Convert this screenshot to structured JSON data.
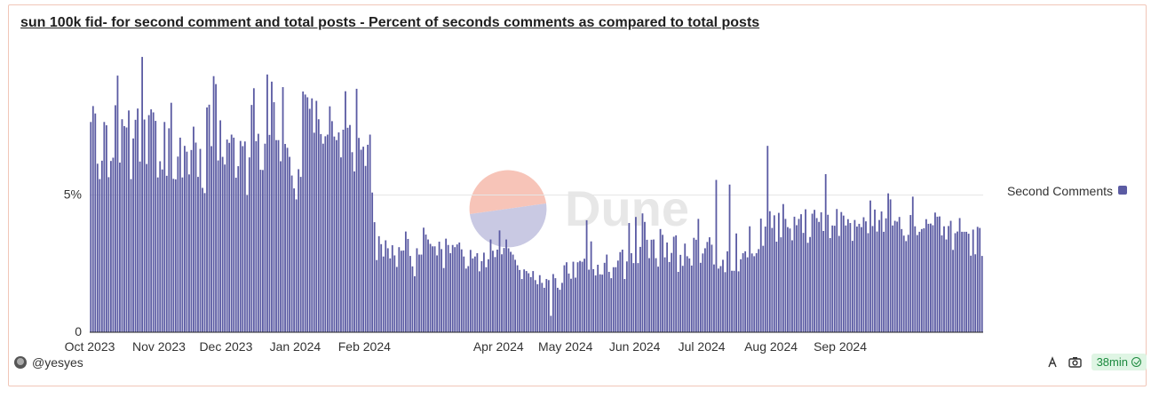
{
  "card": {
    "title": "sun 100k fid- for second comment and total posts - Percent of seconds comments as compared to total posts",
    "author": "@yesyes",
    "refresh_badge": "38min",
    "watermark_text": "Dune"
  },
  "colors": {
    "bar": "#5b5ba3",
    "grid": "#e6e6e6",
    "axis_text": "#333333",
    "watermark_coral": "#f7c4b8",
    "watermark_lavender": "#c9c9e3",
    "watermark_text": "#e7e7e7"
  },
  "icons": {
    "tip": "tip-icon",
    "camera": "camera-icon",
    "check": "check-circle-icon"
  },
  "chart_data": {
    "type": "bar",
    "title": "",
    "xlabel": "",
    "ylabel": "",
    "ylim": [
      0,
      0.1
    ],
    "y_ticks": [
      {
        "value": 0,
        "label": "0"
      },
      {
        "value": 0.05,
        "label": "5%"
      }
    ],
    "x_ticks": [
      "Oct 2023",
      "Nov 2023",
      "Dec 2023",
      "Jan 2024",
      "Feb 2024",
      "Apr 2024",
      "May 2024",
      "Jun 2024",
      "Jul 2024",
      "Aug 2024",
      "Sep 2024"
    ],
    "legend": {
      "position": "right",
      "entries": [
        "Second Comments"
      ]
    },
    "series": [
      {
        "name": "Second Comments",
        "start_date": "2023-10-01",
        "interval": "day",
        "values": [
          0.0766,
          0.0824,
          0.0797,
          0.0614,
          0.0558,
          0.0625,
          0.0766,
          0.0754,
          0.0565,
          0.0624,
          0.0636,
          0.0827,
          0.0935,
          0.0618,
          0.0776,
          0.0751,
          0.0746,
          0.0808,
          0.0558,
          0.0706,
          0.0774,
          0.0815,
          0.0622,
          0.1003,
          0.0775,
          0.0613,
          0.0791,
          0.0812,
          0.0801,
          0.077,
          0.0564,
          0.0623,
          0.0593,
          0.0766,
          0.057,
          0.0743,
          0.0836,
          0.0559,
          0.0557,
          0.064,
          0.0709,
          0.0564,
          0.0679,
          0.0658,
          0.0575,
          0.0664,
          0.0749,
          0.0691,
          0.0566,
          0.0668,
          0.0526,
          0.0507,
          0.0819,
          0.0829,
          0.0678,
          0.0933,
          0.0904,
          0.0626,
          0.0772,
          0.0639,
          0.0611,
          0.0702,
          0.069,
          0.072,
          0.0709,
          0.0563,
          0.0605,
          0.0697,
          0.0678,
          0.0695,
          0.05,
          0.0637,
          0.0828,
          0.0889,
          0.0696,
          0.0723,
          0.0592,
          0.0591,
          0.0687,
          0.0939,
          0.0719,
          0.0913,
          0.0838,
          0.07,
          0.07,
          0.0623,
          0.0893,
          0.0686,
          0.0672,
          0.0639,
          0.0571,
          0.0524,
          0.0484,
          0.0594,
          0.0566,
          0.0877,
          0.0866,
          0.0856,
          0.0814,
          0.0852,
          0.0727,
          0.0843,
          0.0776,
          0.0722,
          0.0687,
          0.0714,
          0.072,
          0.0823,
          0.0769,
          0.0713,
          0.07,
          0.0728,
          0.0637,
          0.0738,
          0.0878,
          0.0745,
          0.0755,
          0.0656,
          0.0586,
          0.0887,
          0.0708,
          0.0665,
          0.0676,
          0.0606,
          0.0683,
          0.072,
          0.0509,
          0.0401,
          0.0263,
          0.035,
          0.0321,
          0.0276,
          0.0335,
          0.0306,
          0.0269,
          0.0317,
          0.028,
          0.0238,
          0.031,
          0.0297,
          0.0298,
          0.0367,
          0.034,
          0.0278,
          0.024,
          0.0204,
          0.0306,
          0.0283,
          0.0283,
          0.0381,
          0.0356,
          0.0338,
          0.0322,
          0.0313,
          0.0313,
          0.028,
          0.033,
          0.0303,
          0.0234,
          0.0341,
          0.0318,
          0.0288,
          0.0318,
          0.031,
          0.032,
          0.0327,
          0.0302,
          0.0276,
          0.0232,
          0.0241,
          0.03,
          0.0269,
          0.0276,
          0.0288,
          0.0222,
          0.0259,
          0.029,
          0.0237,
          0.0266,
          0.0338,
          0.0297,
          0.0274,
          0.0301,
          0.0371,
          0.0284,
          0.0307,
          0.0338,
          0.0306,
          0.0293,
          0.0283,
          0.0264,
          0.0244,
          0.0227,
          0.0194,
          0.0229,
          0.0223,
          0.0215,
          0.0201,
          0.0223,
          0.019,
          0.0175,
          0.0208,
          0.018,
          0.0162,
          0.0194,
          0.019,
          0.006,
          0.0212,
          0.0197,
          0.0162,
          0.0155,
          0.018,
          0.0244,
          0.0255,
          0.0214,
          0.0195,
          0.0257,
          0.0199,
          0.0255,
          0.026,
          0.0257,
          0.0268,
          0.0408,
          0.0228,
          0.0331,
          0.023,
          0.0207,
          0.0246,
          0.0211,
          0.021,
          0.0253,
          0.0283,
          0.022,
          0.0197,
          0.0237,
          0.0237,
          0.0261,
          0.0292,
          0.0301,
          0.0194,
          0.0258,
          0.0398,
          0.0288,
          0.0252,
          0.042,
          0.0252,
          0.0311,
          0.0433,
          0.0402,
          0.0337,
          0.027,
          0.0337,
          0.0338,
          0.027,
          0.0239,
          0.0376,
          0.0355,
          0.0273,
          0.0327,
          0.0256,
          0.0289,
          0.0348,
          0.0353,
          0.022,
          0.0282,
          0.0242,
          0.0323,
          0.0277,
          0.0269,
          0.0243,
          0.0344,
          0.0337,
          0.0413,
          0.0253,
          0.0287,
          0.0306,
          0.0329,
          0.0346,
          0.0319,
          0.0247,
          0.0555,
          0.0232,
          0.0241,
          0.0264,
          0.0219,
          0.0295,
          0.0538,
          0.0224,
          0.0224,
          0.036,
          0.0222,
          0.0266,
          0.0288,
          0.0295,
          0.0273,
          0.0386,
          0.0287,
          0.0277,
          0.0288,
          0.0303,
          0.0414,
          0.0315,
          0.0385,
          0.0679,
          0.0441,
          0.038,
          0.0426,
          0.033,
          0.0435,
          0.0346,
          0.0467,
          0.0413,
          0.0383,
          0.0378,
          0.0335,
          0.0421,
          0.039,
          0.0413,
          0.043,
          0.0362,
          0.0448,
          0.0326,
          0.0347,
          0.0432,
          0.0446,
          0.0416,
          0.0402,
          0.0437,
          0.0369,
          0.0576,
          0.0428,
          0.0343,
          0.0389,
          0.0388,
          0.0449,
          0.0351,
          0.0438,
          0.0425,
          0.0389,
          0.0412,
          0.0398,
          0.0333,
          0.0409,
          0.0385,
          0.0395,
          0.0383,
          0.0419,
          0.0404,
          0.0361,
          0.048,
          0.0387,
          0.0447,
          0.0367,
          0.0409,
          0.044,
          0.0366,
          0.0415,
          0.0506,
          0.0484,
          0.0389,
          0.0406,
          0.0403,
          0.042,
          0.0376,
          0.0352,
          0.0332,
          0.0355,
          0.0427,
          0.0494,
          0.0386,
          0.0354,
          0.0366,
          0.0376,
          0.0379,
          0.0412,
          0.0395,
          0.0396,
          0.039,
          0.0436,
          0.0421,
          0.0422,
          0.0353,
          0.0386,
          0.0338,
          0.0387,
          0.0406,
          0.03,
          0.0361,
          0.0367,
          0.0416,
          0.0366,
          0.0366,
          0.0366,
          0.0359,
          0.0279,
          0.0374,
          0.0284,
          0.0384,
          0.038,
          0.0278
        ]
      }
    ]
  }
}
